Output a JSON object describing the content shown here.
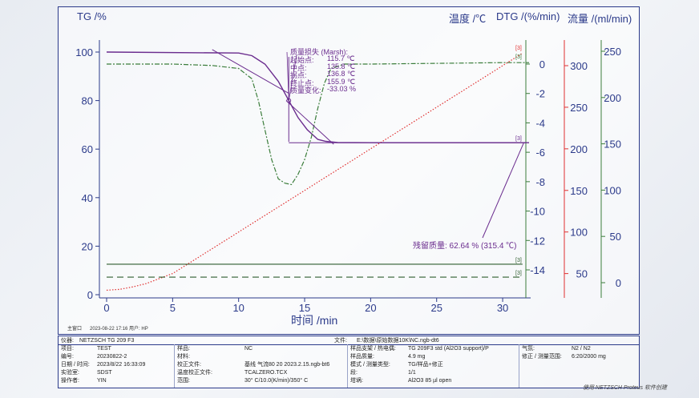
{
  "chart_data": {
    "type": "line",
    "xlabel": "时间 /min",
    "xlim": [
      0,
      32
    ],
    "x_ticks": [
      0,
      5,
      10,
      15,
      20,
      25,
      30
    ],
    "axes": {
      "tg": {
        "label": "TG /%",
        "lim": [
          30,
          105
        ],
        "ticks": [
          100,
          80,
          60,
          40,
          20,
          0
        ]
      },
      "temp": {
        "label": "温度 /℃",
        "ticks": [
          50,
          100,
          150,
          200,
          250,
          300
        ]
      },
      "dtg": {
        "label": "DTG /(%/min)",
        "ticks": [
          0,
          -2,
          -4,
          -6,
          -8,
          -10,
          -12,
          -14
        ]
      },
      "flow": {
        "label": "流量 /(ml/min)",
        "ticks": [
          0,
          50,
          100,
          150,
          200,
          250
        ]
      }
    },
    "series": [
      {
        "key": "tg",
        "color": "#6a2c8e",
        "x": [
          0,
          10,
          11,
          12,
          13,
          13.8,
          14.5,
          15.2,
          16,
          16.6,
          17.5,
          20,
          32
        ],
        "y": [
          100,
          99.6,
          98.5,
          95,
          88,
          80,
          73,
          68,
          64,
          63.2,
          62.7,
          62.64,
          62.64
        ]
      },
      {
        "key": "dtg",
        "color": "#3b7d3b",
        "x": [
          0,
          2,
          5,
          8,
          10,
          11,
          11.5,
          12,
          12.5,
          13,
          13.5,
          14,
          14.5,
          15,
          15.5,
          16,
          16.5,
          17,
          18,
          20,
          25,
          30,
          32
        ],
        "y": [
          0,
          0,
          0,
          -0.1,
          -0.3,
          -1,
          -2.5,
          -4.5,
          -6.5,
          -7.8,
          -8.1,
          -8.2,
          -7.5,
          -6.5,
          -5,
          -3,
          -1.3,
          -0.3,
          0,
          0,
          0.05,
          0.1,
          0.1
        ]
      },
      {
        "key": "temp",
        "color": "#e03030",
        "x": [
          0,
          1,
          2,
          3,
          5,
          8,
          11,
          14,
          17,
          20,
          23,
          26,
          29,
          31.5
        ],
        "y": [
          30,
          31,
          34,
          38,
          50,
          80,
          110,
          140,
          170,
          200,
          230,
          260,
          290,
          315
        ]
      },
      {
        "key": "flow_solid",
        "color": "#2f5e2f",
        "x": [
          0,
          31.5
        ],
        "y": [
          20,
          20
        ]
      },
      {
        "key": "flow_dashed",
        "color": "#2f5e2f",
        "x": [
          0,
          31.5
        ],
        "y": [
          6,
          6
        ]
      }
    ],
    "annotation": {
      "title": "质量损失 (Marsh):",
      "rows": [
        {
          "label": "起始点:",
          "value": "115.7 ℃"
        },
        {
          "label": "中点:",
          "value": "135.8 ℃"
        },
        {
          "label": "拐点:",
          "value": "136.8 ℃"
        },
        {
          "label": "终止点:",
          "value": "155.9 ℃"
        },
        {
          "label": "质量变化:",
          "value": "-33.03 %"
        }
      ],
      "residual": "残留质量: 62.64 % (315.4 ℃)"
    },
    "curve_markers": [
      "[3]",
      "[3]",
      "[3]",
      "[3]",
      "[3]"
    ]
  },
  "main_window_label": "主窗口",
  "timestamp": "2023-08-22 17:16 用户: HP",
  "info": {
    "instrument_label": "仪器:",
    "instrument": "NETZSCH TG 209 F3",
    "file_label": "文件:",
    "file": "E:\\数据\\原始数据10K\\NC.ngb-dt6",
    "rows": [
      [
        "项目:",
        "TEST",
        "样品:",
        "NC",
        "样品支架 / 热电偶:",
        "TG 209F3 std (Al2O3 support)/P",
        "气氛:",
        "N2 / N2"
      ],
      [
        "编号:",
        "20230822-2",
        "材料:",
        "",
        "样品质量:",
        "4.9 mg",
        "修正 / 测量范围:",
        "6:20/2000 mg"
      ],
      [
        "日期 / 时间:",
        "2023/8/22 16:33:09",
        "校正文件:",
        "基线 气流80  20  2023.2.15.ngb-bt6",
        "模式 / 测量类型:",
        "TG/样品+修正",
        "",
        ""
      ],
      [
        "实验室:",
        "SDST",
        "温度校正文件:",
        "TCALZERO.TCX",
        "段:",
        "1/1",
        "",
        ""
      ],
      [
        "操作者:",
        "YIN",
        "范围:",
        "30° C/10.0(K/min)/350° C",
        "坩埚:",
        "Al2O3 85 µl open",
        "",
        ""
      ]
    ]
  },
  "footer": "使用 NETZSCH Proteus 软件创建"
}
